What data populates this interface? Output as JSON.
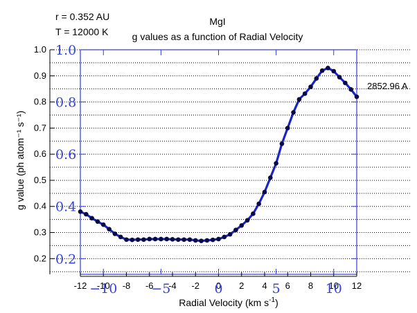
{
  "chart_data": {
    "type": "line",
    "title": "MgI",
    "subtitle": "g values as a function of Radial Velocity",
    "top_left_annotations": [
      "r = 0.352 AU",
      "T = 12000 K"
    ],
    "series_label": "2852.96 A",
    "xlabel_main": "Radial Velocity (km s",
    "xlabel_sup": "-1",
    "xlabel_end": ")",
    "ylabel": "g value (ph atom⁻¹ s⁻¹)",
    "xlim": [
      -12,
      12
    ],
    "ylim": [
      0.14,
      1.0
    ],
    "x_ticks": [
      -12,
      -10,
      -8,
      -6,
      -4,
      -2,
      0,
      2,
      4,
      6,
      8,
      10,
      12
    ],
    "x_tick_labels": [
      "-12",
      "-10",
      "-8",
      "-6",
      "-4",
      "-2",
      "0",
      "2",
      "4",
      "6",
      "8",
      "10",
      "12"
    ],
    "y_ticks": [
      0.2,
      0.3,
      0.4,
      0.5,
      0.6,
      0.7,
      0.8,
      0.9,
      1.0
    ],
    "y_tick_labels": [
      "0.2",
      "0.3",
      "0.4",
      "0.5",
      "0.6",
      "0.7",
      "0.8",
      "0.9",
      "1.0"
    ],
    "blue_overlay_x_ticks": [
      -10,
      -5,
      0,
      5,
      10
    ],
    "blue_overlay_x_labels": [
      "−10",
      "−5",
      "0",
      "5",
      "10"
    ],
    "blue_overlay_y_ticks": [
      0.2,
      0.4,
      0.6,
      0.8,
      1.0
    ],
    "blue_overlay_y_labels": [
      "0.2",
      "0.4",
      "0.6",
      "0.8",
      "1.0"
    ],
    "dotted_gridlines_y": [
      0.15,
      0.2,
      0.25,
      0.3,
      0.35,
      0.4,
      0.45,
      0.5,
      0.55,
      0.6,
      0.65,
      0.7,
      0.75,
      0.8,
      0.85,
      0.9,
      0.95,
      1.0
    ],
    "grid": true,
    "series": [
      {
        "x": [
          -12.0,
          -11.5,
          -11.0,
          -10.5,
          -10.0,
          -9.5,
          -9.0,
          -8.5,
          -8.0,
          -7.5,
          -7.0,
          -6.5,
          -6.0,
          -5.5,
          -5.0,
          -4.5,
          -4.0,
          -3.5,
          -3.0,
          -2.5,
          -2.0,
          -1.5,
          -1.0,
          -0.5,
          0.0,
          0.5,
          1.0,
          1.5,
          2.0,
          2.5,
          3.0,
          3.5,
          4.0,
          4.5,
          5.0,
          5.5,
          6.0,
          6.5,
          7.0,
          7.5,
          8.0,
          8.5,
          9.0,
          9.5,
          10.0,
          10.5,
          11.0,
          11.5,
          12.0
        ],
        "y": [
          0.38,
          0.37,
          0.355,
          0.342,
          0.33,
          0.313,
          0.295,
          0.283,
          0.273,
          0.272,
          0.273,
          0.273,
          0.275,
          0.275,
          0.275,
          0.275,
          0.274,
          0.273,
          0.273,
          0.273,
          0.27,
          0.268,
          0.27,
          0.272,
          0.275,
          0.283,
          0.293,
          0.31,
          0.327,
          0.347,
          0.372,
          0.41,
          0.455,
          0.51,
          0.565,
          0.64,
          0.7,
          0.76,
          0.81,
          0.832,
          0.858,
          0.89,
          0.92,
          0.93,
          0.918,
          0.895,
          0.873,
          0.848,
          0.82
        ]
      }
    ],
    "colors": {
      "line": "#1a25c8",
      "marker": "#0a0a44",
      "frame": "#2f3bd6",
      "overlay_text": "#3344dd",
      "grid": "#000000"
    }
  }
}
